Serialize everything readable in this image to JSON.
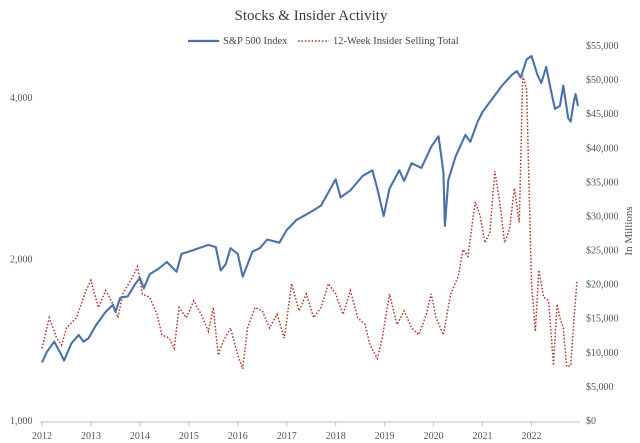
{
  "chart_data": {
    "type": "line",
    "title": "Stocks & Insider Activity",
    "x_ticks": [
      "2012",
      "2013",
      "2014",
      "2015",
      "2016",
      "2017",
      "2018",
      "2019",
      "2020",
      "2021",
      "2022"
    ],
    "xlim": [
      2012.0,
      2022.95
    ],
    "left_axis": {
      "scale": "log",
      "ylim": [
        1000,
        5000
      ],
      "ticks": [
        "1,000",
        "2,000",
        "4,000"
      ],
      "tick_values": [
        1000,
        2000,
        4000
      ]
    },
    "right_axis": {
      "label": "In Millions",
      "ylim": [
        0,
        55000
      ],
      "ticks": [
        "$0",
        "$5,000",
        "$10,000",
        "$15,000",
        "$20,000",
        "$25,000",
        "$30,000",
        "$35,000",
        "$40,000",
        "$45,000",
        "$50,000",
        "$55,000"
      ],
      "tick_values": [
        0,
        5000,
        10000,
        15000,
        20000,
        25000,
        30000,
        35000,
        40000,
        45000,
        50000,
        55000
      ]
    },
    "series": [
      {
        "name": "S&P 500 Index",
        "axis": "left",
        "color": "#4a72a8",
        "style": "solid",
        "points": [
          [
            2012.0,
            1280
          ],
          [
            2012.1,
            1340
          ],
          [
            2012.25,
            1400
          ],
          [
            2012.4,
            1320
          ],
          [
            2012.45,
            1290
          ],
          [
            2012.6,
            1390
          ],
          [
            2012.75,
            1440
          ],
          [
            2012.85,
            1400
          ],
          [
            2012.95,
            1420
          ],
          [
            2013.1,
            1500
          ],
          [
            2013.3,
            1590
          ],
          [
            2013.45,
            1640
          ],
          [
            2013.5,
            1590
          ],
          [
            2013.6,
            1690
          ],
          [
            2013.75,
            1700
          ],
          [
            2013.9,
            1790
          ],
          [
            2014.0,
            1840
          ],
          [
            2014.08,
            1760
          ],
          [
            2014.2,
            1870
          ],
          [
            2014.4,
            1920
          ],
          [
            2014.55,
            1970
          ],
          [
            2014.75,
            1890
          ],
          [
            2014.85,
            2040
          ],
          [
            2015.0,
            2060
          ],
          [
            2015.2,
            2090
          ],
          [
            2015.4,
            2120
          ],
          [
            2015.55,
            2100
          ],
          [
            2015.65,
            1900
          ],
          [
            2015.75,
            1950
          ],
          [
            2015.85,
            2090
          ],
          [
            2016.0,
            2040
          ],
          [
            2016.1,
            1850
          ],
          [
            2016.3,
            2060
          ],
          [
            2016.45,
            2090
          ],
          [
            2016.6,
            2170
          ],
          [
            2016.85,
            2140
          ],
          [
            2017.0,
            2260
          ],
          [
            2017.2,
            2360
          ],
          [
            2017.45,
            2430
          ],
          [
            2017.7,
            2510
          ],
          [
            2018.0,
            2810
          ],
          [
            2018.1,
            2600
          ],
          [
            2018.3,
            2680
          ],
          [
            2018.55,
            2850
          ],
          [
            2018.75,
            2920
          ],
          [
            2018.85,
            2700
          ],
          [
            2018.98,
            2400
          ],
          [
            2019.1,
            2700
          ],
          [
            2019.3,
            2920
          ],
          [
            2019.4,
            2790
          ],
          [
            2019.55,
            3010
          ],
          [
            2019.75,
            2950
          ],
          [
            2019.95,
            3230
          ],
          [
            2020.1,
            3380
          ],
          [
            2020.2,
            2900
          ],
          [
            2020.23,
            2300
          ],
          [
            2020.3,
            2800
          ],
          [
            2020.45,
            3100
          ],
          [
            2020.65,
            3400
          ],
          [
            2020.75,
            3300
          ],
          [
            2020.9,
            3600
          ],
          [
            2021.0,
            3750
          ],
          [
            2021.2,
            3970
          ],
          [
            2021.4,
            4200
          ],
          [
            2021.6,
            4400
          ],
          [
            2021.7,
            4470
          ],
          [
            2021.78,
            4350
          ],
          [
            2021.9,
            4700
          ],
          [
            2022.0,
            4770
          ],
          [
            2022.12,
            4400
          ],
          [
            2022.2,
            4250
          ],
          [
            2022.3,
            4550
          ],
          [
            2022.4,
            4100
          ],
          [
            2022.48,
            3800
          ],
          [
            2022.58,
            3850
          ],
          [
            2022.65,
            4200
          ],
          [
            2022.75,
            3650
          ],
          [
            2022.8,
            3600
          ],
          [
            2022.86,
            3900
          ],
          [
            2022.9,
            4050
          ],
          [
            2022.95,
            3850
          ]
        ]
      },
      {
        "name": "12-Week Insider Selling Total",
        "axis": "right",
        "color": "#b03a2e",
        "style": "dotted",
        "points": [
          [
            2012.0,
            10500
          ],
          [
            2012.15,
            15000
          ],
          [
            2012.3,
            12000
          ],
          [
            2012.4,
            11000
          ],
          [
            2012.5,
            13500
          ],
          [
            2012.7,
            15000
          ],
          [
            2012.9,
            19000
          ],
          [
            2013.0,
            20500
          ],
          [
            2013.15,
            16500
          ],
          [
            2013.3,
            19000
          ],
          [
            2013.45,
            17000
          ],
          [
            2013.55,
            15000
          ],
          [
            2013.65,
            18500
          ],
          [
            2013.85,
            21000
          ],
          [
            2013.95,
            22500
          ],
          [
            2014.05,
            18500
          ],
          [
            2014.2,
            18000
          ],
          [
            2014.35,
            15500
          ],
          [
            2014.45,
            12500
          ],
          [
            2014.6,
            12000
          ],
          [
            2014.7,
            10500
          ],
          [
            2014.8,
            16500
          ],
          [
            2014.95,
            15000
          ],
          [
            2015.1,
            17500
          ],
          [
            2015.25,
            15500
          ],
          [
            2015.4,
            13000
          ],
          [
            2015.5,
            16500
          ],
          [
            2015.6,
            9500
          ],
          [
            2015.7,
            11500
          ],
          [
            2015.85,
            13500
          ],
          [
            2016.0,
            9500
          ],
          [
            2016.1,
            7500
          ],
          [
            2016.2,
            13500
          ],
          [
            2016.35,
            16500
          ],
          [
            2016.5,
            16000
          ],
          [
            2016.65,
            13500
          ],
          [
            2016.8,
            15500
          ],
          [
            2016.95,
            12000
          ],
          [
            2017.1,
            20000
          ],
          [
            2017.25,
            16000
          ],
          [
            2017.4,
            18500
          ],
          [
            2017.55,
            15000
          ],
          [
            2017.7,
            16500
          ],
          [
            2017.85,
            20000
          ],
          [
            2018.0,
            18500
          ],
          [
            2018.15,
            15500
          ],
          [
            2018.3,
            19000
          ],
          [
            2018.45,
            15000
          ],
          [
            2018.6,
            14000
          ],
          [
            2018.7,
            11000
          ],
          [
            2018.85,
            9000
          ],
          [
            2018.95,
            12000
          ],
          [
            2019.1,
            18500
          ],
          [
            2019.25,
            14000
          ],
          [
            2019.4,
            16000
          ],
          [
            2019.55,
            13500
          ],
          [
            2019.7,
            12500
          ],
          [
            2019.85,
            15500
          ],
          [
            2019.95,
            18500
          ],
          [
            2020.05,
            15000
          ],
          [
            2020.2,
            12500
          ],
          [
            2020.35,
            18500
          ],
          [
            2020.5,
            21000
          ],
          [
            2020.6,
            25000
          ],
          [
            2020.7,
            24000
          ],
          [
            2020.85,
            32000
          ],
          [
            2020.95,
            30000
          ],
          [
            2021.05,
            26000
          ],
          [
            2021.15,
            27500
          ],
          [
            2021.25,
            36500
          ],
          [
            2021.35,
            32000
          ],
          [
            2021.45,
            26000
          ],
          [
            2021.55,
            28000
          ],
          [
            2021.65,
            34000
          ],
          [
            2021.75,
            29000
          ],
          [
            2021.82,
            50500
          ],
          [
            2021.9,
            48500
          ],
          [
            2022.0,
            20000
          ],
          [
            2022.08,
            13000
          ],
          [
            2022.15,
            22000
          ],
          [
            2022.25,
            18000
          ],
          [
            2022.35,
            17500
          ],
          [
            2022.45,
            8000
          ],
          [
            2022.52,
            17000
          ],
          [
            2022.58,
            15000
          ],
          [
            2022.65,
            13500
          ],
          [
            2022.72,
            7800
          ],
          [
            2022.8,
            8000
          ],
          [
            2022.86,
            14000
          ],
          [
            2022.93,
            20500
          ]
        ]
      }
    ]
  }
}
